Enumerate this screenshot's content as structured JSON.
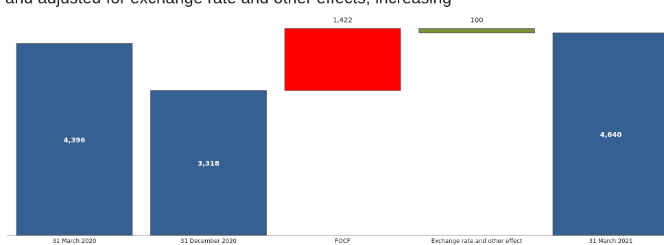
{
  "header_text": ", and adjusted for exchange rate and other effects, increasing",
  "colors": {
    "total": "#376092",
    "decrease": "#ff0000",
    "increase": "#77933c",
    "axis": "#999999"
  },
  "chart_data": {
    "type": "bar",
    "subtype": "waterfall",
    "title": "",
    "xlabel": "",
    "ylabel": "",
    "categories": [
      "31 March 2020",
      "31 December 2020",
      "FOCF",
      "Exchange rate and other effect",
      "31 March 2021"
    ],
    "bars": [
      {
        "category": "31 March 2020",
        "kind": "total",
        "start": 0,
        "end": 4396,
        "label": "4,396"
      },
      {
        "category": "31 December 2020",
        "kind": "total",
        "start": 0,
        "end": 3318,
        "label": "3,318"
      },
      {
        "category": "FOCF",
        "kind": "decrease",
        "start": 3318,
        "end": 4740,
        "label": "1,422"
      },
      {
        "category": "Exchange rate and other effect",
        "kind": "increase",
        "start": 4740,
        "end": 4640,
        "label": "100"
      },
      {
        "category": "31 March 2021",
        "kind": "total",
        "start": 0,
        "end": 4640,
        "label": "4,640"
      }
    ],
    "ylim": [
      0,
      4800
    ],
    "grid": false,
    "legend": "none"
  }
}
